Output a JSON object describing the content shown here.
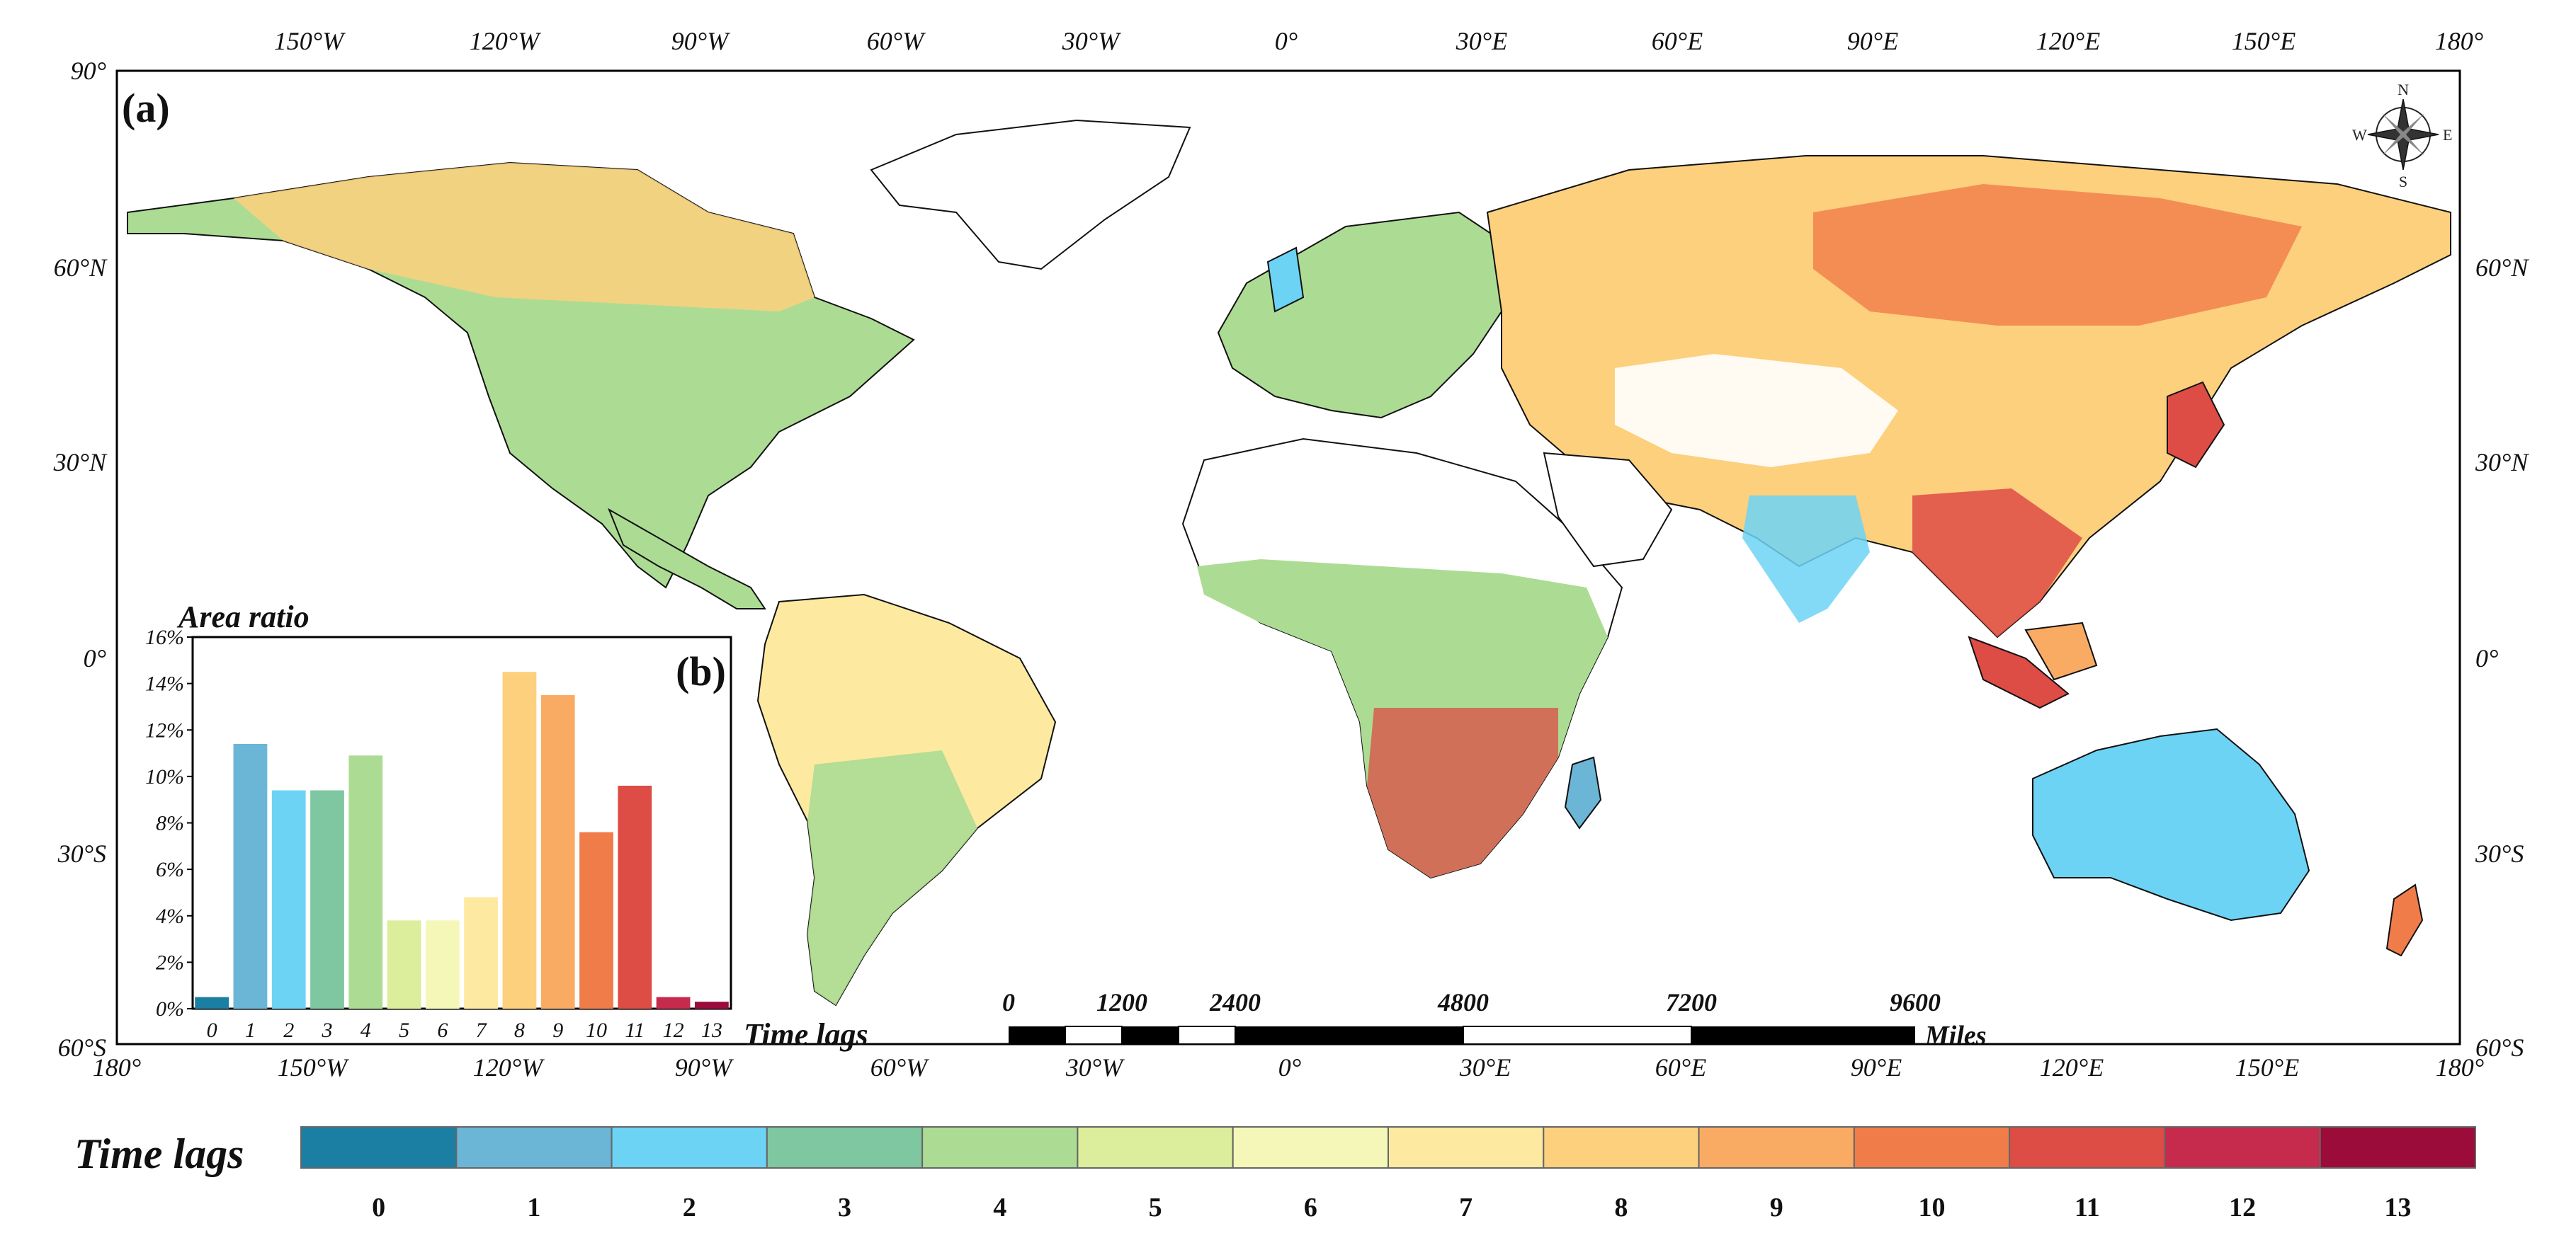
{
  "map": {
    "panel_label": "(a)",
    "top_lon_labels": [
      "150°W",
      "120°W",
      "90°W",
      "60°W",
      "30°W",
      "0°",
      "30°E",
      "60°E",
      "90°E",
      "120°E",
      "150°E",
      "180°"
    ],
    "bottom_lon_labels": [
      "180°",
      "150°W",
      "120°W",
      "90°W",
      "60°W",
      "30°W",
      "0°",
      "30°E",
      "60°E",
      "90°E",
      "120°E",
      "150°E",
      "180°"
    ],
    "left_lat_labels": [
      "90°",
      "60°N",
      "30°N",
      "0°",
      "30°S",
      "60°S"
    ],
    "right_lat_labels": [
      "60°N",
      "30°N",
      "0°",
      "30°S",
      "60°S"
    ],
    "compass": {
      "n": "N",
      "s": "S",
      "e": "E",
      "w": "W"
    },
    "scale_bar": {
      "ticks": [
        "0",
        "1200",
        "2400",
        "4800",
        "7200",
        "9600"
      ],
      "unit": "Miles"
    }
  },
  "legend": {
    "title": "Time lags",
    "classes": [
      {
        "value": "0",
        "color": "#1a7fa3"
      },
      {
        "value": "1",
        "color": "#6bb5d6"
      },
      {
        "value": "2",
        "color": "#6cd3f5"
      },
      {
        "value": "3",
        "color": "#7ec7a0"
      },
      {
        "value": "4",
        "color": "#acdc93"
      },
      {
        "value": "5",
        "color": "#dcee9c"
      },
      {
        "value": "6",
        "color": "#f5f7b8"
      },
      {
        "value": "7",
        "color": "#fde9a0"
      },
      {
        "value": "8",
        "color": "#fdd07e"
      },
      {
        "value": "9",
        "color": "#f9ab64"
      },
      {
        "value": "10",
        "color": "#f07c4a"
      },
      {
        "value": "11",
        "color": "#de4c46"
      },
      {
        "value": "12",
        "color": "#c62a4c"
      },
      {
        "value": "13",
        "color": "#9b0c3a"
      }
    ]
  },
  "chart_data": {
    "type": "bar",
    "panel_label": "(b)",
    "title": "Area ratio",
    "xlabel": "Time lags",
    "ylabel": "Area ratio",
    "categories": [
      "0",
      "1",
      "2",
      "3",
      "4",
      "5",
      "6",
      "7",
      "8",
      "9",
      "10",
      "11",
      "12",
      "13"
    ],
    "values": [
      0.5,
      11.4,
      9.4,
      9.4,
      10.9,
      3.8,
      3.8,
      4.8,
      14.5,
      13.5,
      7.6,
      9.6,
      0.5,
      0.3
    ],
    "y_ticks": [
      "0%",
      "2%",
      "4%",
      "6%",
      "8%",
      "10%",
      "12%",
      "14%",
      "16%"
    ],
    "ylim": [
      0,
      16
    ],
    "unit": "%"
  }
}
